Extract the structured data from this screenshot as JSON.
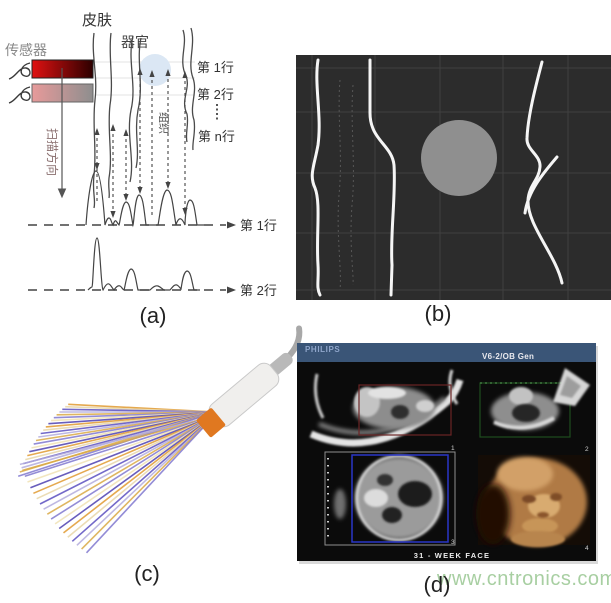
{
  "captions": {
    "a": "(a)",
    "b": "(b)",
    "c": "(c)",
    "d": "(d)"
  },
  "watermark": {
    "text": "www.cntronics.com",
    "color": "#a8cfa2"
  },
  "panel_a": {
    "labels": {
      "skin": "皮肤",
      "sensor": "传感器",
      "organ": "器官",
      "row1": "第 1行",
      "row2": "第 2行",
      "row_n": "第 n行",
      "tissue": "组织",
      "scan_direction": "扫描方向",
      "wave_row1": "第 1行",
      "wave_row2": "第 2行"
    },
    "colors": {
      "sensor_active_start": "#e01111",
      "sensor_active_end": "#2d0000",
      "sensor_inactive_start": "#e79a9a",
      "sensor_inactive_end": "#8e8e8e",
      "organ_circle": "#dbe7f4",
      "scan_text": "#8a6f6f"
    }
  },
  "panel_b": {
    "colors": {
      "background": "#2c2c2c",
      "grid": "#404040",
      "contour": "#f5f5f5",
      "lesion": "#8f8f8f"
    }
  },
  "panel_c": {
    "beam_colors": [
      "#e09a30",
      "#e8d6a8",
      "#5b4fc0",
      "#b3abdd",
      "#d9a945",
      "#8078cf",
      "#f0e2b4",
      "#4d41b0"
    ],
    "probe_head_color": "#e07820"
  },
  "panel_d": {
    "brand": "PHILIPS",
    "probe_label": "V6-2/OB Gen",
    "footer_label": "31 - WEEK  FACE",
    "header_bg": "#3a5577",
    "quadrants": [
      {
        "number": "1"
      },
      {
        "number": "2"
      },
      {
        "number": "3"
      },
      {
        "number": "4"
      }
    ]
  }
}
